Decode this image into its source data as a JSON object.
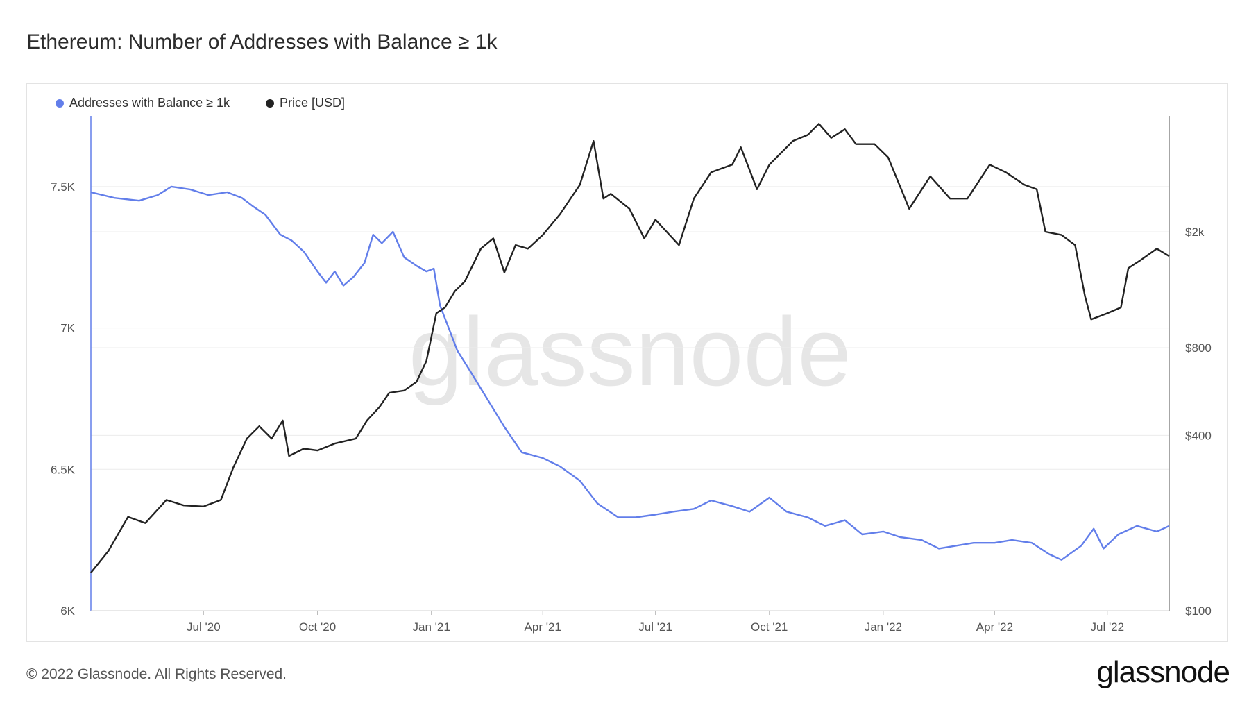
{
  "title": "Ethereum: Number of Addresses with Balance ≥ 1k",
  "footer": "© 2022 Glassnode. All Rights Reserved.",
  "brand": "glassnode",
  "watermark": "glassnode",
  "colors": {
    "addresses": "#627EEA",
    "price": "#222222",
    "grid": "#ececec",
    "axis_text": "#555555"
  },
  "chart_data": {
    "type": "line",
    "title": "Ethereum: Number of Addresses with Balance ≥ 1k",
    "x_range": [
      "2020-04-01",
      "2022-08-20"
    ],
    "x_ticks": [
      {
        "label": "Jul '20",
        "date": "2020-07-01"
      },
      {
        "label": "Oct '20",
        "date": "2020-10-01"
      },
      {
        "label": "Jan '21",
        "date": "2021-01-01"
      },
      {
        "label": "Apr '21",
        "date": "2021-04-01"
      },
      {
        "label": "Jul '21",
        "date": "2021-07-01"
      },
      {
        "label": "Oct '21",
        "date": "2021-10-01"
      },
      {
        "label": "Jan '22",
        "date": "2022-01-01"
      },
      {
        "label": "Apr '22",
        "date": "2022-04-01"
      },
      {
        "label": "Jul '22",
        "date": "2022-07-01"
      }
    ],
    "y_left": {
      "scale": "linear",
      "range": [
        6000,
        7750
      ],
      "ticks": [
        {
          "label": "6K",
          "value": 6000
        },
        {
          "label": "6.5K",
          "value": 6500
        },
        {
          "label": "7K",
          "value": 7000
        },
        {
          "label": "7.5K",
          "value": 7500
        }
      ]
    },
    "y_right": {
      "scale": "log",
      "range": [
        100,
        5000
      ],
      "ticks": [
        {
          "label": "$100",
          "value": 100
        },
        {
          "label": "$400",
          "value": 400
        },
        {
          "label": "$800",
          "value": 800
        },
        {
          "label": "$2k",
          "value": 2000
        }
      ]
    },
    "series": [
      {
        "name": "Addresses with Balance ≥ 1k",
        "axis": "left",
        "color": "#627EEA",
        "points": [
          [
            "2020-04-01",
            7480
          ],
          [
            "2020-04-20",
            7460
          ],
          [
            "2020-05-10",
            7450
          ],
          [
            "2020-05-25",
            7470
          ],
          [
            "2020-06-05",
            7500
          ],
          [
            "2020-06-20",
            7490
          ],
          [
            "2020-07-05",
            7470
          ],
          [
            "2020-07-20",
            7480
          ],
          [
            "2020-08-01",
            7460
          ],
          [
            "2020-08-10",
            7430
          ],
          [
            "2020-08-20",
            7400
          ],
          [
            "2020-09-01",
            7330
          ],
          [
            "2020-09-10",
            7310
          ],
          [
            "2020-09-20",
            7270
          ],
          [
            "2020-10-01",
            7200
          ],
          [
            "2020-10-08",
            7160
          ],
          [
            "2020-10-15",
            7200
          ],
          [
            "2020-10-22",
            7150
          ],
          [
            "2020-10-30",
            7180
          ],
          [
            "2020-11-08",
            7230
          ],
          [
            "2020-11-15",
            7330
          ],
          [
            "2020-11-22",
            7300
          ],
          [
            "2020-12-01",
            7340
          ],
          [
            "2020-12-10",
            7250
          ],
          [
            "2020-12-20",
            7220
          ],
          [
            "2020-12-28",
            7200
          ],
          [
            "2021-01-03",
            7210
          ],
          [
            "2021-01-08",
            7080
          ],
          [
            "2021-01-15",
            7000
          ],
          [
            "2021-01-22",
            6920
          ],
          [
            "2021-02-01",
            6850
          ],
          [
            "2021-02-15",
            6750
          ],
          [
            "2021-03-01",
            6650
          ],
          [
            "2021-03-15",
            6560
          ],
          [
            "2021-04-01",
            6540
          ],
          [
            "2021-04-15",
            6510
          ],
          [
            "2021-05-01",
            6460
          ],
          [
            "2021-05-15",
            6380
          ],
          [
            "2021-06-01",
            6330
          ],
          [
            "2021-06-15",
            6330
          ],
          [
            "2021-07-01",
            6340
          ],
          [
            "2021-07-15",
            6350
          ],
          [
            "2021-08-01",
            6360
          ],
          [
            "2021-08-15",
            6390
          ],
          [
            "2021-09-01",
            6370
          ],
          [
            "2021-09-15",
            6350
          ],
          [
            "2021-10-01",
            6400
          ],
          [
            "2021-10-15",
            6350
          ],
          [
            "2021-11-01",
            6330
          ],
          [
            "2021-11-15",
            6300
          ],
          [
            "2021-12-01",
            6320
          ],
          [
            "2021-12-15",
            6270
          ],
          [
            "2022-01-01",
            6280
          ],
          [
            "2022-01-15",
            6260
          ],
          [
            "2022-02-01",
            6250
          ],
          [
            "2022-02-15",
            6220
          ],
          [
            "2022-03-01",
            6230
          ],
          [
            "2022-03-15",
            6240
          ],
          [
            "2022-04-01",
            6240
          ],
          [
            "2022-04-15",
            6250
          ],
          [
            "2022-05-01",
            6240
          ],
          [
            "2022-05-15",
            6200
          ],
          [
            "2022-05-25",
            6180
          ],
          [
            "2022-06-10",
            6230
          ],
          [
            "2022-06-20",
            6290
          ],
          [
            "2022-06-28",
            6220
          ],
          [
            "2022-07-10",
            6270
          ],
          [
            "2022-07-25",
            6300
          ],
          [
            "2022-08-10",
            6280
          ],
          [
            "2022-08-20",
            6300
          ]
        ]
      },
      {
        "name": "Price [USD]",
        "axis": "right",
        "color": "#222222",
        "points": [
          [
            "2020-04-01",
            135
          ],
          [
            "2020-04-15",
            160
          ],
          [
            "2020-05-01",
            210
          ],
          [
            "2020-05-15",
            200
          ],
          [
            "2020-06-01",
            240
          ],
          [
            "2020-06-15",
            230
          ],
          [
            "2020-07-01",
            228
          ],
          [
            "2020-07-15",
            240
          ],
          [
            "2020-07-25",
            310
          ],
          [
            "2020-08-05",
            390
          ],
          [
            "2020-08-15",
            430
          ],
          [
            "2020-08-25",
            390
          ],
          [
            "2020-09-03",
            450
          ],
          [
            "2020-09-08",
            340
          ],
          [
            "2020-09-20",
            360
          ],
          [
            "2020-10-01",
            355
          ],
          [
            "2020-10-15",
            375
          ],
          [
            "2020-11-01",
            390
          ],
          [
            "2020-11-10",
            450
          ],
          [
            "2020-11-20",
            500
          ],
          [
            "2020-11-28",
            560
          ],
          [
            "2020-12-10",
            570
          ],
          [
            "2020-12-20",
            610
          ],
          [
            "2020-12-28",
            720
          ],
          [
            "2021-01-05",
            1050
          ],
          [
            "2021-01-12",
            1100
          ],
          [
            "2021-01-20",
            1250
          ],
          [
            "2021-01-28",
            1350
          ],
          [
            "2021-02-10",
            1750
          ],
          [
            "2021-02-20",
            1900
          ],
          [
            "2021-03-01",
            1450
          ],
          [
            "2021-03-10",
            1800
          ],
          [
            "2021-03-20",
            1750
          ],
          [
            "2021-04-01",
            1950
          ],
          [
            "2021-04-15",
            2300
          ],
          [
            "2021-05-01",
            2900
          ],
          [
            "2021-05-12",
            4100
          ],
          [
            "2021-05-20",
            2600
          ],
          [
            "2021-05-26",
            2700
          ],
          [
            "2021-06-10",
            2400
          ],
          [
            "2021-06-22",
            1900
          ],
          [
            "2021-07-01",
            2200
          ],
          [
            "2021-07-20",
            1800
          ],
          [
            "2021-08-01",
            2600
          ],
          [
            "2021-08-15",
            3200
          ],
          [
            "2021-09-01",
            3400
          ],
          [
            "2021-09-08",
            3900
          ],
          [
            "2021-09-21",
            2800
          ],
          [
            "2021-10-01",
            3400
          ],
          [
            "2021-10-20",
            4100
          ],
          [
            "2021-11-01",
            4300
          ],
          [
            "2021-11-10",
            4700
          ],
          [
            "2021-11-20",
            4200
          ],
          [
            "2021-12-01",
            4500
          ],
          [
            "2021-12-10",
            4000
          ],
          [
            "2021-12-25",
            4000
          ],
          [
            "2022-01-05",
            3600
          ],
          [
            "2022-01-22",
            2400
          ],
          [
            "2022-02-08",
            3100
          ],
          [
            "2022-02-24",
            2600
          ],
          [
            "2022-03-10",
            2600
          ],
          [
            "2022-03-28",
            3400
          ],
          [
            "2022-04-10",
            3200
          ],
          [
            "2022-04-25",
            2900
          ],
          [
            "2022-05-05",
            2800
          ],
          [
            "2022-05-12",
            2000
          ],
          [
            "2022-05-25",
            1950
          ],
          [
            "2022-06-05",
            1800
          ],
          [
            "2022-06-13",
            1200
          ],
          [
            "2022-06-18",
            1000
          ],
          [
            "2022-07-01",
            1050
          ],
          [
            "2022-07-12",
            1100
          ],
          [
            "2022-07-18",
            1500
          ],
          [
            "2022-07-28",
            1600
          ],
          [
            "2022-08-10",
            1750
          ],
          [
            "2022-08-20",
            1650
          ]
        ]
      }
    ]
  }
}
